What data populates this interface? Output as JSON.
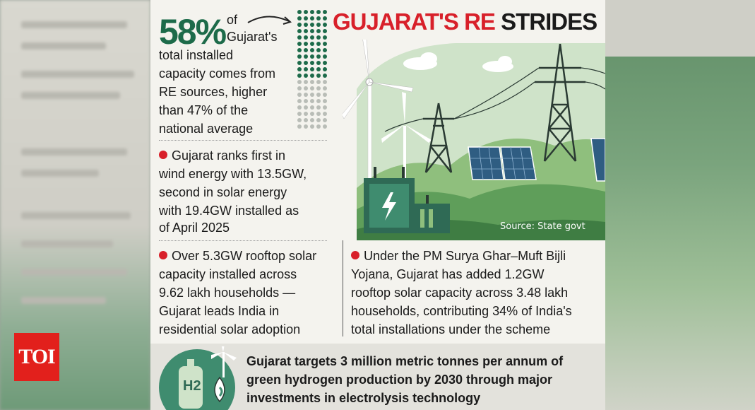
{
  "headline": {
    "part1": "GUJARAT'S RE",
    "part2": "STRIDES"
  },
  "stat": {
    "value": "58%",
    "of": "of",
    "lines": [
      "Gujarat's",
      "total installed",
      "capacity comes from",
      "RE sources, higher",
      "than 47% of the",
      "national average"
    ]
  },
  "points": [
    {
      "lines": [
        "Gujarat ranks first in",
        "wind energy with 13.5GW,",
        "second in solar energy",
        "with 19.4GW installed as",
        "of April 2025"
      ]
    },
    {
      "lines": [
        "Over 5.3GW rooftop solar",
        "capacity installed across",
        "9.62 lakh households —",
        "Gujarat leads India in",
        "residential solar adoption"
      ]
    },
    {
      "lines": [
        "Under the PM Surya Ghar–Muft Bijli",
        "Yojana, Gujarat has added 1.2GW",
        "rooftop solar capacity across 3.48 lakh",
        "households, contributing 34% of India's",
        "total installations under the scheme"
      ]
    }
  ],
  "bottom": {
    "lines": [
      "Gujarat targets 3 million metric tonnes per annum of",
      "green hydrogen production by 2030 through major",
      "investments in electrolysis technology"
    ],
    "icon_label": "H2"
  },
  "source": "Source: State govt",
  "brand": "TOI",
  "colors": {
    "accent_red": "#d8202a",
    "green": "#1d6b4a",
    "toi_red": "#e2201c"
  }
}
